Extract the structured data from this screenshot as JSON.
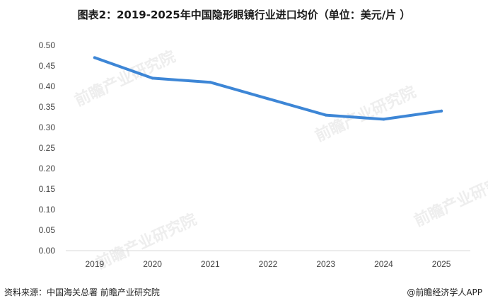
{
  "title": "图表2：2019-2025年中国隐形眼镜行业进口均价（单位：美元/片 ）",
  "footer": {
    "source": "资料来源：中国海关总署  前瞻产业研究院",
    "brand": "@前瞻经济学人APP"
  },
  "watermark": "前瞻产业研究院",
  "colors": {
    "line": "#3D86D6",
    "axis": "#d9d9d9"
  },
  "chart_data": {
    "type": "line",
    "title": "图表2：2019-2025年中国隐形眼镜行业进口均价（单位：美元/片 ）",
    "xlabel": "",
    "ylabel": "",
    "categories": [
      "2019",
      "2020",
      "2021",
      "2022",
      "2023",
      "2024",
      "2025"
    ],
    "values": [
      0.47,
      0.42,
      0.41,
      0.37,
      0.33,
      0.32,
      0.34
    ],
    "ylim": [
      0,
      0.5
    ],
    "yticks": [
      "0.00",
      "0.05",
      "0.10",
      "0.15",
      "0.20",
      "0.25",
      "0.30",
      "0.35",
      "0.40",
      "0.45",
      "0.50"
    ],
    "grid": false,
    "legend": "none"
  }
}
